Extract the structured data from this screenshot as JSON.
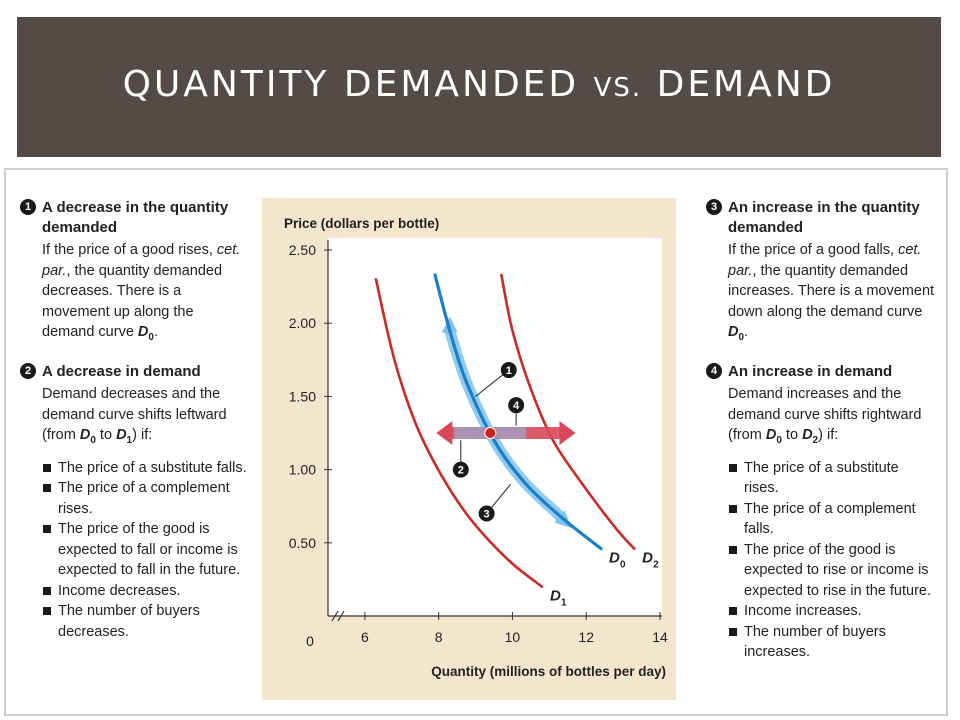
{
  "title": {
    "main_a": "QUANTITY DEMANDED ",
    "vs": "VS.",
    "main_b": " DEMAND"
  },
  "left": {
    "p1": {
      "num": "1",
      "head": "A decrease in the quantity demanded",
      "body_a": "If the price of a good rises, ",
      "cetpar": "cet. par.",
      "body_b": ", the quantity demanded decreases. There is a movement up along the demand curve ",
      "curve": "D",
      "curve_sub": "0",
      "end": "."
    },
    "p2": {
      "num": "2",
      "head": "A decrease in demand",
      "body_a": "Demand decreases and the demand curve shifts leftward (from ",
      "from": "D",
      "from_sub": "0",
      "to_word": " to ",
      "to": "D",
      "to_sub": "1",
      "body_b": ") if:",
      "bullets": [
        "The price of a substitute falls.",
        "The price of a complement rises.",
        "The price of the good is expected to fall or income is expected to fall in the future.",
        "Income decreases.",
        "The number of buyers decreases."
      ]
    }
  },
  "right": {
    "p3": {
      "num": "3",
      "head": "An increase in the quantity demanded",
      "body_a": "If the price of a good falls, ",
      "cetpar": "cet. par.",
      "body_b": ", the quantity demanded increases. There is a movement down along the demand curve ",
      "curve": "D",
      "curve_sub": "0",
      "end": "."
    },
    "p4": {
      "num": "4",
      "head": "An increase in demand",
      "body_a": "Demand increases and the demand curve shifts rightward (from ",
      "from": "D",
      "from_sub": "0",
      "to_word": " to ",
      "to": "D",
      "to_sub": "2",
      "body_b": ") if:",
      "bullets": [
        "The price of a substitute rises.",
        "The price of a complement falls.",
        "The price of the good is expected to rise or income is expected to rise in the future.",
        "Income increases.",
        "The number of buyers increases."
      ]
    }
  },
  "chart_data": {
    "type": "line",
    "ylabel": "Price (dollars per bottle)",
    "xlabel": "Quantity (millions of bottles per day)",
    "y_ticks": [
      0.5,
      1.0,
      1.5,
      2.0,
      2.5
    ],
    "y_tick_labels": [
      "0.50",
      "1.00",
      "1.50",
      "2.00",
      "2.50"
    ],
    "x_ticks": [
      6,
      8,
      10,
      12,
      14
    ],
    "x_tick_labels": [
      "6",
      "8",
      "10",
      "12",
      "14"
    ],
    "origin_label": "0",
    "xlim": [
      5,
      14
    ],
    "ylim": [
      0,
      2.5
    ],
    "axis_break": true,
    "series": [
      {
        "name": "D",
        "sub": "1",
        "color": "#cc2a26",
        "points": [
          [
            6.3,
            2.3
          ],
          [
            6.8,
            1.75
          ],
          [
            7.4,
            1.3
          ],
          [
            8.1,
            0.95
          ],
          [
            8.9,
            0.65
          ],
          [
            9.9,
            0.38
          ],
          [
            10.8,
            0.2
          ]
        ]
      },
      {
        "name": "D",
        "sub": "0",
        "color": "#1a7fc8",
        "points": [
          [
            7.9,
            2.33
          ],
          [
            8.3,
            1.95
          ],
          [
            8.75,
            1.6
          ],
          [
            9.5,
            1.2
          ],
          [
            10.3,
            0.92
          ],
          [
            11.3,
            0.68
          ],
          [
            12.4,
            0.46
          ]
        ]
      },
      {
        "name": "D",
        "sub": "2",
        "color": "#cc2a26",
        "points": [
          [
            9.7,
            2.33
          ],
          [
            10.0,
            1.95
          ],
          [
            10.5,
            1.55
          ],
          [
            11.1,
            1.2
          ],
          [
            11.9,
            0.9
          ],
          [
            12.8,
            0.6
          ],
          [
            13.3,
            0.46
          ]
        ]
      }
    ],
    "point": {
      "x": 9.4,
      "y": 1.25,
      "color": "#d11f1f"
    },
    "callouts": [
      "1",
      "2",
      "3",
      "4"
    ],
    "colors": {
      "shift_left": "#d9485a",
      "shift_right": "#d9485a",
      "movement": "#7fc2ea"
    }
  }
}
